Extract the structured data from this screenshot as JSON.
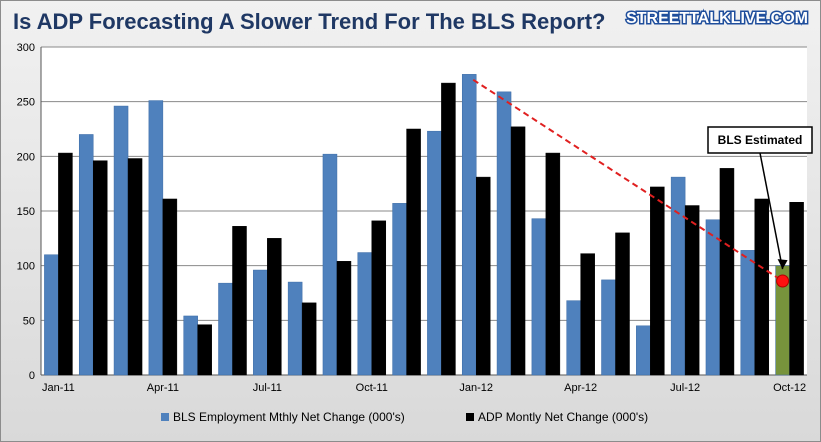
{
  "chart_data": {
    "type": "bar",
    "title": "Is ADP Forecasting A Slower Trend For The BLS Report?",
    "source": "STREETTALKLIVE.COM",
    "ylim": [
      0,
      300
    ],
    "yticks": [
      0,
      50,
      100,
      150,
      200,
      250,
      300
    ],
    "categories": [
      "Jan-11",
      "Feb-11",
      "Mar-11",
      "Apr-11",
      "May-11",
      "Jun-11",
      "Jul-11",
      "Aug-11",
      "Sep-11",
      "Oct-11",
      "Nov-11",
      "Dec-11",
      "Jan-12",
      "Feb-12",
      "Mar-12",
      "Apr-12",
      "May-12",
      "Jun-12",
      "Jul-12",
      "Aug-12",
      "Sep-12",
      "Oct-12"
    ],
    "xtick_labels": [
      {
        "index": 0,
        "label": "Jan-11"
      },
      {
        "index": 3,
        "label": "Apr-11"
      },
      {
        "index": 6,
        "label": "Jul-11"
      },
      {
        "index": 9,
        "label": "Oct-11"
      },
      {
        "index": 12,
        "label": "Jan-12"
      },
      {
        "index": 15,
        "label": "Apr-12"
      },
      {
        "index": 18,
        "label": "Jul-12"
      },
      {
        "index": 21,
        "label": "Oct-12"
      }
    ],
    "series": [
      {
        "name": "BLS Employment Mthly Net Change (000's)",
        "color": "#4f81bd",
        "values": [
          110,
          220,
          246,
          251,
          54,
          84,
          96,
          85,
          202,
          112,
          157,
          223,
          275,
          259,
          143,
          68,
          87,
          45,
          181,
          142,
          114,
          100
        ]
      },
      {
        "name": "ADP Montly Net Change (000's)",
        "color": "#000000",
        "values": [
          203,
          196,
          198,
          161,
          46,
          136,
          125,
          66,
          104,
          141,
          225,
          267,
          181,
          227,
          203,
          111,
          130,
          172,
          155,
          189,
          161,
          158
        ]
      }
    ],
    "highlight": {
      "series": 0,
      "index": 21,
      "color": "#77933c"
    },
    "trend_line": {
      "from_index": 12,
      "from_value": 270,
      "to_index": 21,
      "to_value": 86,
      "color": "#e02020"
    },
    "annotation": {
      "text": "BLS Estimated",
      "index": 21,
      "value": 95
    }
  }
}
